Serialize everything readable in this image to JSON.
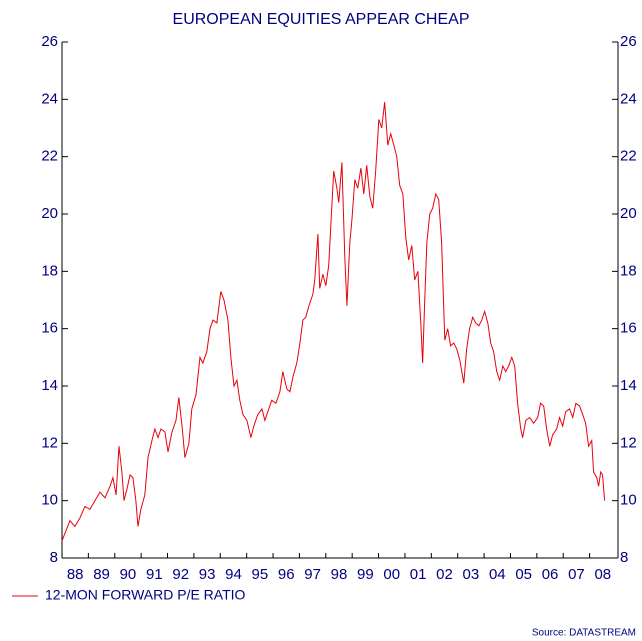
{
  "chart_data": {
    "type": "line",
    "title": "EUROPEAN EQUITIES APPEAR CHEAP",
    "source": "Source: DATASTREAM",
    "x": [
      1988.0,
      1988.3,
      1988.49,
      1988.68,
      1988.87,
      1989.06,
      1989.25,
      1989.44,
      1989.63,
      1989.82,
      1989.93,
      1990.05,
      1990.16,
      1990.27,
      1990.35,
      1990.46,
      1990.58,
      1990.69,
      1990.8,
      1990.88,
      1990.99,
      1991.14,
      1991.26,
      1991.41,
      1991.52,
      1991.64,
      1991.75,
      1991.9,
      1992.02,
      1992.17,
      1992.32,
      1992.43,
      1992.55,
      1992.66,
      1992.81,
      1992.92,
      1993.08,
      1993.23,
      1993.34,
      1993.49,
      1993.61,
      1993.72,
      1993.87,
      1994.02,
      1994.14,
      1994.29,
      1994.4,
      1994.52,
      1994.63,
      1994.74,
      1994.86,
      1995.01,
      1995.16,
      1995.27,
      1995.42,
      1995.58,
      1995.69,
      1995.8,
      1995.95,
      1996.11,
      1996.26,
      1996.37,
      1996.52,
      1996.64,
      1996.75,
      1996.9,
      1997.02,
      1997.13,
      1997.24,
      1997.36,
      1997.51,
      1997.58,
      1997.7,
      1997.77,
      1997.89,
      1998.0,
      1998.11,
      1998.23,
      1998.3,
      1998.42,
      1998.49,
      1998.61,
      1998.72,
      1998.8,
      1998.91,
      1998.99,
      1999.1,
      1999.21,
      1999.33,
      1999.44,
      1999.55,
      1999.67,
      1999.78,
      1999.89,
      2000.01,
      2000.12,
      2000.23,
      2000.35,
      2000.46,
      2000.58,
      2000.69,
      2000.8,
      2000.92,
      2001.03,
      2001.14,
      2001.26,
      2001.37,
      2001.49,
      2001.6,
      2001.67,
      2001.75,
      2001.83,
      2001.94,
      2002.05,
      2002.17,
      2002.28,
      2002.39,
      2002.51,
      2002.62,
      2002.73,
      2002.85,
      2002.96,
      2003.08,
      2003.23,
      2003.34,
      2003.45,
      2003.57,
      2003.68,
      2003.8,
      2003.91,
      2004.02,
      2004.14,
      2004.25,
      2004.36,
      2004.48,
      2004.59,
      2004.71,
      2004.82,
      2004.93,
      2005.05,
      2005.16,
      2005.27,
      2005.39,
      2005.46,
      2005.58,
      2005.73,
      2005.88,
      2006.03,
      2006.14,
      2006.26,
      2006.37,
      2006.49,
      2006.6,
      2006.75,
      2006.86,
      2006.98,
      2007.09,
      2007.24,
      2007.36,
      2007.48,
      2007.62,
      2007.74,
      2007.85,
      2007.96,
      2008.08,
      2008.15,
      2008.27,
      2008.34,
      2008.42,
      2008.49,
      2008.57
    ],
    "series": [
      {
        "name": "12-MON FORWARD P/E RATIO",
        "color": "#e8000b",
        "values": [
          8.6,
          9.3,
          9.1,
          9.4,
          9.8,
          9.7,
          10.0,
          10.3,
          10.1,
          10.5,
          10.8,
          10.2,
          11.9,
          11.0,
          10.0,
          10.4,
          10.9,
          10.8,
          10.0,
          9.1,
          9.7,
          10.2,
          11.5,
          12.1,
          12.5,
          12.2,
          12.5,
          12.4,
          11.7,
          12.4,
          12.8,
          13.6,
          12.6,
          11.5,
          12.0,
          13.2,
          13.7,
          15.0,
          14.8,
          15.2,
          16.0,
          16.3,
          16.2,
          17.3,
          17.0,
          16.3,
          15.0,
          14.0,
          14.2,
          13.5,
          13.0,
          12.8,
          12.2,
          12.6,
          13.0,
          13.2,
          12.8,
          13.1,
          13.5,
          13.4,
          13.8,
          14.5,
          13.9,
          13.8,
          14.3,
          14.8,
          15.5,
          16.3,
          16.4,
          16.8,
          17.2,
          17.7,
          19.3,
          17.4,
          17.9,
          17.5,
          18.2,
          20.3,
          21.5,
          20.9,
          20.4,
          21.8,
          18.5,
          16.8,
          19.0,
          19.8,
          21.2,
          20.9,
          21.6,
          20.7,
          21.7,
          20.6,
          20.2,
          21.5,
          23.3,
          23.0,
          23.9,
          22.4,
          22.8,
          22.4,
          22.0,
          21.0,
          20.7,
          19.2,
          18.4,
          18.9,
          17.7,
          18.0,
          16.2,
          14.8,
          17.0,
          19.0,
          20.0,
          20.2,
          20.7,
          20.5,
          19.0,
          15.6,
          16.0,
          15.4,
          15.5,
          15.3,
          14.9,
          14.1,
          15.3,
          16.0,
          16.4,
          16.2,
          16.1,
          16.3,
          16.6,
          16.2,
          15.5,
          15.2,
          14.5,
          14.2,
          14.7,
          14.5,
          14.7,
          15.0,
          14.7,
          13.4,
          12.5,
          12.2,
          12.8,
          12.9,
          12.7,
          12.9,
          13.4,
          13.3,
          12.5,
          11.9,
          12.3,
          12.5,
          12.9,
          12.6,
          13.1,
          13.2,
          12.9,
          13.4,
          13.3,
          13.0,
          12.7,
          11.9,
          12.1,
          11.0,
          10.8,
          10.5,
          11.0,
          10.9,
          10.0
        ]
      }
    ],
    "xlim": [
      1988,
      2009
    ],
    "xticks": [
      {
        "value": 1988.5,
        "label": "88"
      },
      {
        "value": 1989.5,
        "label": "89"
      },
      {
        "value": 1990.5,
        "label": "90"
      },
      {
        "value": 1991.5,
        "label": "91"
      },
      {
        "value": 1992.5,
        "label": "92"
      },
      {
        "value": 1993.5,
        "label": "93"
      },
      {
        "value": 1994.5,
        "label": "94"
      },
      {
        "value": 1995.5,
        "label": "95"
      },
      {
        "value": 1996.5,
        "label": "96"
      },
      {
        "value": 1997.5,
        "label": "97"
      },
      {
        "value": 1998.5,
        "label": "98"
      },
      {
        "value": 1999.5,
        "label": "99"
      },
      {
        "value": 2000.5,
        "label": "00"
      },
      {
        "value": 2001.5,
        "label": "01"
      },
      {
        "value": 2002.5,
        "label": "02"
      },
      {
        "value": 2003.5,
        "label": "03"
      },
      {
        "value": 2004.5,
        "label": "04"
      },
      {
        "value": 2005.5,
        "label": "05"
      },
      {
        "value": 2006.5,
        "label": "06"
      },
      {
        "value": 2007.5,
        "label": "07"
      },
      {
        "value": 2008.5,
        "label": "08"
      }
    ],
    "ylim": [
      8,
      26
    ],
    "yticks": [
      8,
      10,
      12,
      14,
      16,
      18,
      20,
      22,
      24,
      26
    ],
    "grid": false,
    "legend": "bottom-left"
  }
}
